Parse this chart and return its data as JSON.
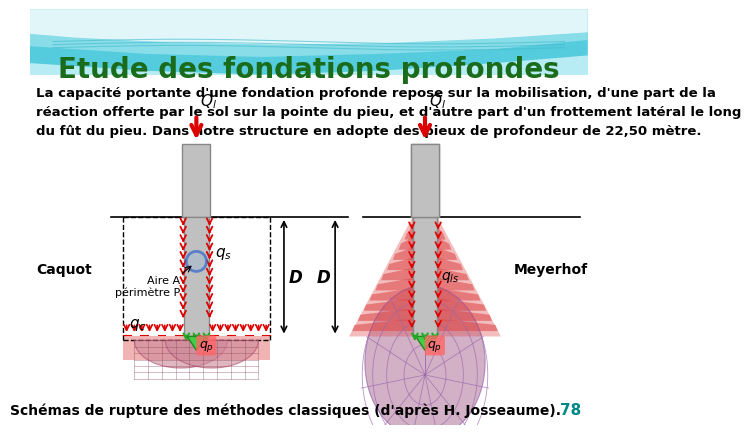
{
  "title": "Etude des fondations profondes",
  "title_color": "#1a6b1a",
  "title_fontsize": 20,
  "body_text": "La capacité portante d'une fondation profonde repose sur la mobilisation, d'une part de la\nréaction offerte par le sol sur la pointe du pieu, et d'autre part d'un frottement latéral le long\ndu fût du pieu. Dans notre structure en adopte des pieux de profondeur de 22,50 mètre.",
  "body_color": "#000000",
  "body_fontsize": 9.5,
  "footer_text": "Schémas de rupture des méthodes classiques (d'après H. Josseaume).",
  "footer_color": "#000000",
  "footer_fontsize": 10,
  "page_num": "78",
  "page_num_color": "#008888",
  "background_color": "#ffffff",
  "label_caquot": "Caquot",
  "label_meyerhof": "Meyerhof",
  "label_aire": "Aire A\npérimètre P",
  "label_D": "D",
  "label_qs_left": "q_s",
  "label_qs_right": "q_{ls}",
  "label_qc": "q_c",
  "label_qp_left": "q_p",
  "label_qp_right": "q_p",
  "label_Qi_left": "Q_l",
  "label_Qi_right": "Q_l",
  "pile_color": "#c0c0c0",
  "pile_edge": "#888888",
  "arrow_red": "#dd0000",
  "arrow_green": "#22aa22",
  "dashed_color": "#555555",
  "circle_color": "#3366cc",
  "bulb_pink": "#c090b0",
  "bulb_red": "#dd5566",
  "bulb_grid": "#9966aa",
  "ground_red": "#dd4444",
  "ground_pink": "#e088a0"
}
